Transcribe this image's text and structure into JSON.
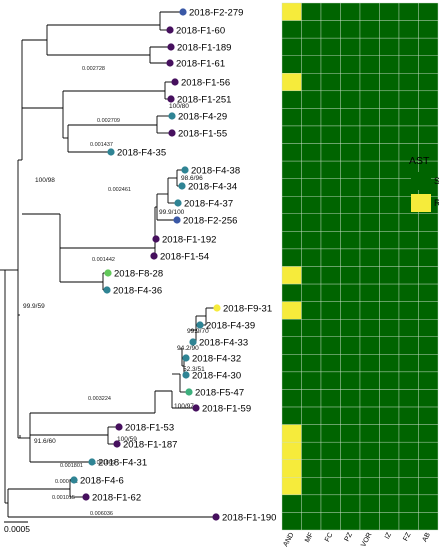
{
  "tips": [
    {
      "label": "2018-F2-279",
      "group": "blue"
    },
    {
      "label": "2018-F1-60",
      "group": "purple"
    },
    {
      "label": "2018-F1-189",
      "group": "purple"
    },
    {
      "label": "2018-F1-61",
      "group": "purple"
    },
    {
      "label": "2018-F1-56",
      "group": "purple"
    },
    {
      "label": "2018-F1-251",
      "group": "purple"
    },
    {
      "label": "2018-F4-29",
      "group": "teal"
    },
    {
      "label": "2018-F1-55",
      "group": "purple"
    },
    {
      "label": "2018-F4-35",
      "group": "teal"
    },
    {
      "label": "2018-F4-38",
      "group": "teal"
    },
    {
      "label": "2018-F4-34",
      "group": "teal"
    },
    {
      "label": "2018-F4-37",
      "group": "teal"
    },
    {
      "label": "2018-F2-256",
      "group": "blue"
    },
    {
      "label": "2018-F1-192",
      "group": "purple"
    },
    {
      "label": "2018-F1-54",
      "group": "purple"
    },
    {
      "label": "2018-F8-28",
      "group": "green"
    },
    {
      "label": "2018-F4-36",
      "group": "teal"
    },
    {
      "label": "2018-F9-31",
      "group": "yellow"
    },
    {
      "label": "2018-F4-39",
      "group": "teal"
    },
    {
      "label": "2018-F4-33",
      "group": "teal"
    },
    {
      "label": "2018-F4-32",
      "group": "teal"
    },
    {
      "label": "2018-F4-30",
      "group": "teal"
    },
    {
      "label": "2018-F5-47",
      "group": "seagreen"
    },
    {
      "label": "2018-F1-59",
      "group": "purple"
    },
    {
      "label": "2018-F1-53",
      "group": "purple"
    },
    {
      "label": "2018-F1-187",
      "group": "purple"
    },
    {
      "label": "2018-F4-31",
      "group": "teal"
    },
    {
      "label": "2018-F4-6",
      "group": "teal"
    },
    {
      "label": "2018-F1-62",
      "group": "purple"
    },
    {
      "label": "2018-F1-190",
      "group": "purple"
    }
  ],
  "support_values": [
    "100/80",
    "100/98",
    "98.6/96",
    "99.9/100",
    "99.9/59",
    "99.9/70",
    "94.2/90",
    "52.3/51",
    "100/97",
    "100/59",
    "91.6/60"
  ],
  "branch_lengths": [
    "0.002728",
    "0.002709",
    "0.001437",
    "0.002461",
    "0.001442",
    "0.003224",
    "0.001869",
    "0.001801",
    "0.000742",
    "0.001015",
    "0.006036"
  ],
  "heatmap": {
    "columns": [
      "AND",
      "MF",
      "FC",
      "PZ",
      "VOR",
      "IZ",
      "FZ",
      "AB"
    ],
    "resistant_cells": [
      [
        0,
        0
      ],
      [
        4,
        0
      ],
      [
        15,
        0
      ],
      [
        17,
        0
      ],
      [
        24,
        0
      ],
      [
        25,
        0
      ],
      [
        26,
        0
      ],
      [
        27,
        0
      ]
    ]
  },
  "legend": {
    "title": "AST",
    "items": [
      {
        "label": "S",
        "color": "#006400"
      },
      {
        "label": "R",
        "color": "#f6eb3b"
      }
    ]
  },
  "scale_bar": {
    "label": "0.0005"
  },
  "colors": {
    "blue": "#3a58a6",
    "purple": "#46105e",
    "teal": "#2f8494",
    "green": "#62c85a",
    "seagreen": "#3caf7c",
    "yellow": "#f6eb3b",
    "heat_s": "#006400",
    "heat_r": "#f6eb3b",
    "grid_line": "#c8ddc8"
  }
}
